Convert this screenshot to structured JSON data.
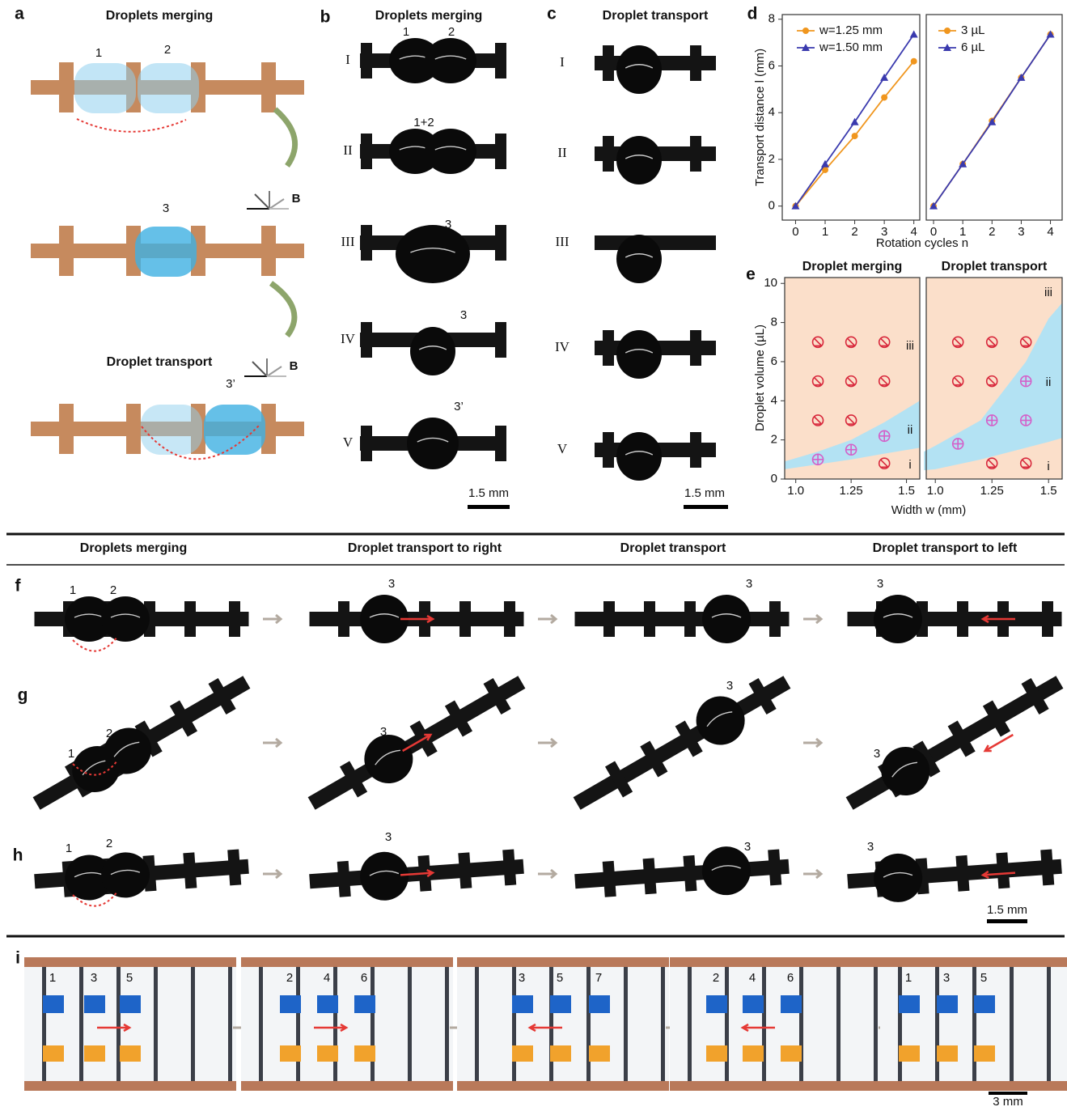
{
  "a": {
    "label": "a",
    "title": "Droplets merging",
    "droplet_labels": [
      "1",
      "2",
      "3",
      "3’"
    ],
    "field": [
      "B",
      "B"
    ],
    "subtitle": "Droplet transport"
  },
  "b": {
    "label": "b",
    "title": "Droplets merging",
    "rows": [
      "I",
      "II",
      "III",
      "IV",
      "V"
    ],
    "droplet_labels": [
      "1",
      "2",
      "1+2",
      "3",
      "3",
      "3’"
    ],
    "scale": "1.5 mm"
  },
  "c": {
    "label": "c",
    "title": "Droplet transport",
    "rows": [
      "I",
      "II",
      "III",
      "IV",
      "V"
    ],
    "scale": "1.5 mm"
  },
  "d": {
    "label": "d"
  },
  "e": {
    "label": "e"
  },
  "chart_data": [
    {
      "type": "line",
      "ylabel": "Transport distance l (mm)",
      "xlabel": "Rotation cycles n",
      "x": [
        0,
        1,
        2,
        3,
        4
      ],
      "series": [
        {
          "name": "w=1.25 mm",
          "color": "#f0961e",
          "marker": "circle",
          "values": [
            0,
            1.55,
            3.0,
            4.65,
            6.2
          ]
        },
        {
          "name": "w=1.50 mm",
          "color": "#3a3aae",
          "marker": "triangle",
          "values": [
            0,
            1.8,
            3.6,
            5.5,
            7.35
          ]
        }
      ],
      "xlim": [
        -0.45,
        4.2
      ],
      "xticks": [
        0,
        1,
        2,
        3,
        4
      ],
      "ylim": [
        -0.6,
        8.2
      ],
      "yticks": [
        0,
        2,
        4,
        6,
        8
      ],
      "legend": "upper left"
    },
    {
      "type": "line",
      "x": [
        0,
        1,
        2,
        3,
        4
      ],
      "series": [
        {
          "name": "3 µL",
          "color": "#f0961e",
          "marker": "circle",
          "values": [
            0,
            1.8,
            3.65,
            5.5,
            7.35
          ]
        },
        {
          "name": "6 µL",
          "color": "#3a3aae",
          "marker": "triangle",
          "values": [
            0,
            1.8,
            3.6,
            5.5,
            7.35
          ]
        }
      ],
      "xlim": [
        -0.25,
        4.4
      ],
      "xticks": [
        0,
        1,
        2,
        3,
        4
      ],
      "ylim": [
        -0.6,
        8.2
      ],
      "legend": "upper left"
    },
    {
      "type": "scatter",
      "title": "Droplet merging",
      "ylabel": "Droplet volume (µL)",
      "xlabel": "Width w (mm)",
      "series": [
        {
          "color": "#d8283c",
          "marker": "cross",
          "x": [
            1.1,
            1.25,
            1.4,
            1.1,
            1.25,
            1.4,
            1.1,
            1.25,
            1.4
          ],
          "values": [
            7,
            7,
            7,
            5,
            5,
            5,
            3,
            3,
            0.8
          ]
        },
        {
          "color": "#d45fc8",
          "marker": "plus",
          "x": [
            1.1,
            1.25,
            1.4
          ],
          "values": [
            1.0,
            1.5,
            2.2
          ]
        }
      ],
      "region_x": [
        0.95,
        1.1,
        1.25,
        1.4,
        1.56
      ],
      "region_lower": [
        0.5,
        0.75,
        1.0,
        1.3,
        1.6
      ],
      "region_upper": [
        0.9,
        1.4,
        2.0,
        2.9,
        4.0
      ],
      "region_labels": [
        "i",
        "ii",
        "iii"
      ],
      "xlim": [
        0.95,
        1.56
      ],
      "xticks": [
        {
          "value": 1,
          "label": "1.0"
        },
        1.25,
        1.5
      ],
      "ylim": [
        0,
        10.3
      ],
      "yticks": [
        0,
        2,
        4,
        6,
        8,
        10
      ]
    },
    {
      "type": "scatter",
      "title": "Droplet transport",
      "series": [
        {
          "color": "#d8283c",
          "marker": "cross",
          "x": [
            1.1,
            1.25,
            1.4,
            1.1,
            1.25,
            1.25,
            1.4
          ],
          "values": [
            7,
            7,
            7,
            5,
            5,
            0.8,
            0.8
          ]
        },
        {
          "color": "#d45fc8",
          "marker": "plus",
          "x": [
            1.4,
            1.25,
            1.4,
            1.1
          ],
          "values": [
            5,
            3,
            3,
            1.8
          ]
        }
      ],
      "region_x": [
        0.95,
        1.0,
        1.2,
        1.3,
        1.4,
        1.5,
        1.56
      ],
      "region_lower": [
        0.45,
        0.5,
        1.0,
        1.3,
        1.6,
        1.9,
        2.1
      ],
      "region_upper": [
        1.4,
        1.7,
        3.0,
        4.5,
        6.0,
        8.2,
        9.0
      ],
      "region_labels": [
        "i",
        "ii",
        "iii"
      ],
      "xlim": [
        0.96,
        1.56
      ],
      "xticks": [
        {
          "value": 1,
          "label": "1.0"
        },
        1.25,
        1.5
      ],
      "ylim": [
        0,
        10.3
      ]
    }
  ],
  "fgh": {
    "headers": [
      "Droplets merging",
      "Droplet transport to right",
      "Droplet transport",
      "Droplet transport to left"
    ],
    "rows": [
      {
        "label": "f",
        "droplet_labels": [
          "1",
          "2",
          "3",
          "3",
          "3"
        ]
      },
      {
        "label": "g",
        "droplet_labels": [
          "1",
          "2",
          "3",
          "3",
          "3"
        ]
      },
      {
        "label": "h",
        "droplet_labels": [
          "1",
          "2",
          "3",
          "3",
          "3"
        ]
      }
    ],
    "scale": "1.5 mm"
  },
  "i": {
    "label": "i",
    "frames": [
      [
        "1",
        "3",
        "5"
      ],
      [
        "2",
        "4",
        "6"
      ],
      [
        "3",
        "5",
        "7"
      ],
      [
        "2",
        "4",
        "6"
      ],
      [
        "1",
        "3",
        "5"
      ]
    ],
    "scale": "3 mm"
  }
}
